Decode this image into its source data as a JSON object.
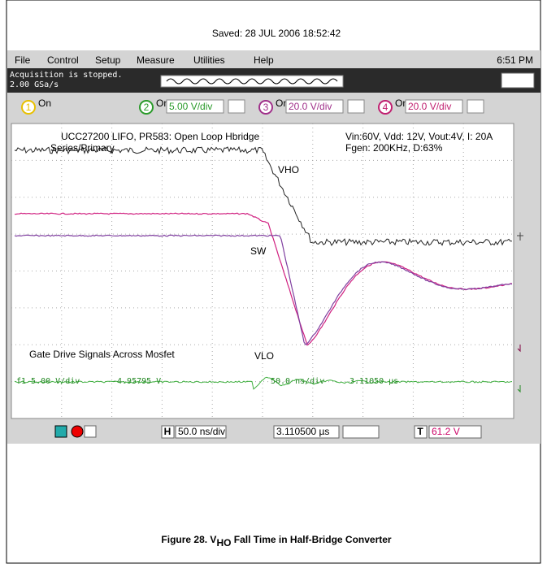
{
  "saved": "Saved:  28 JUL 2006  18:52:42",
  "menu": [
    "File",
    "Control",
    "Setup",
    "Measure",
    "Utilities",
    "Help"
  ],
  "clock": "6:51 PM",
  "status": [
    "Acquisition is stopped.",
    "2.00 GSa/s"
  ],
  "channels": [
    {
      "num": "1",
      "on": "On"
    },
    {
      "num": "2",
      "on": "On",
      "scale": "5.00 V/div"
    },
    {
      "num": "3",
      "on": "On",
      "scale": "20.0 V/div"
    },
    {
      "num": "4",
      "on": "On",
      "scale": "20.0 V/div"
    }
  ],
  "screen": {
    "title": "UCC27200 LIFO, PR583: Open Loop Hbridge",
    "subtitle": "Series/Primary",
    "conditions": [
      "Vin:60V, Vdd: 12V, Vout:4V, I: 20A",
      "Fgen: 200KHz, D:63%"
    ],
    "labels": [
      "VHO",
      "SW",
      "VLO"
    ],
    "note": "Gate Drive Signals Across Mosfet",
    "readout": [
      "f1  5.00 V/div",
      "-4.95795 V",
      "50.0 ns/div",
      "3.11050 µs"
    ]
  },
  "bottom": {
    "h": "H",
    "hscale": "50.0 ns/div",
    "pos": "3.110500 µs",
    "t": "T",
    "level": "61.2 V"
  },
  "caption": {
    "lead": "Figure 28. V",
    "sub": "HO",
    "rest": " Fall Time in Half-Bridge Converter"
  }
}
